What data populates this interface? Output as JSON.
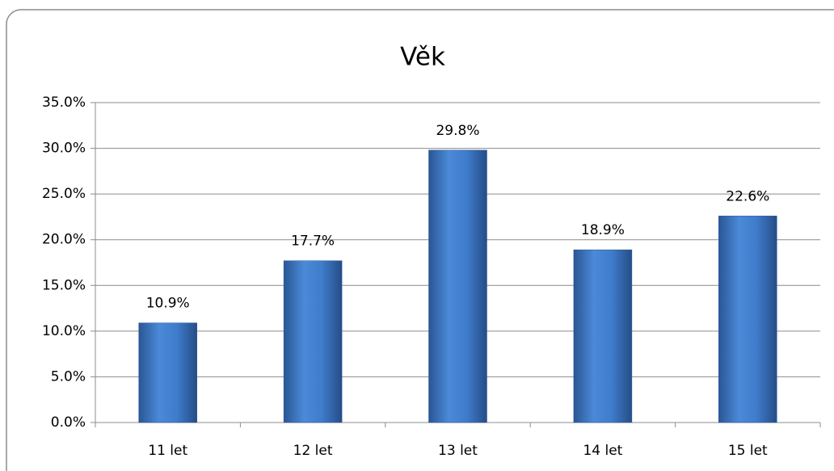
{
  "chart_data": {
    "type": "bar",
    "title": "Věk",
    "categories": [
      "11 let",
      "12 let",
      "13 let",
      "14 let",
      "15 let"
    ],
    "values": [
      10.9,
      17.7,
      29.8,
      18.9,
      22.6
    ],
    "value_labels": [
      "10.9%",
      "17.7%",
      "29.8%",
      "18.9%",
      "22.6%"
    ],
    "color": "#3a78c8",
    "ylim": [
      0,
      35
    ],
    "yticks": [
      {
        "value": 0,
        "label": "0.0%"
      },
      {
        "value": 5,
        "label": "5.0%"
      },
      {
        "value": 10,
        "label": "10.0%"
      },
      {
        "value": 15,
        "label": "15.0%"
      },
      {
        "value": 20,
        "label": "20.0%"
      },
      {
        "value": 25,
        "label": "25.0%"
      },
      {
        "value": 30,
        "label": "30.0%"
      },
      {
        "value": 35,
        "label": "35.0%"
      }
    ],
    "grid": true
  }
}
